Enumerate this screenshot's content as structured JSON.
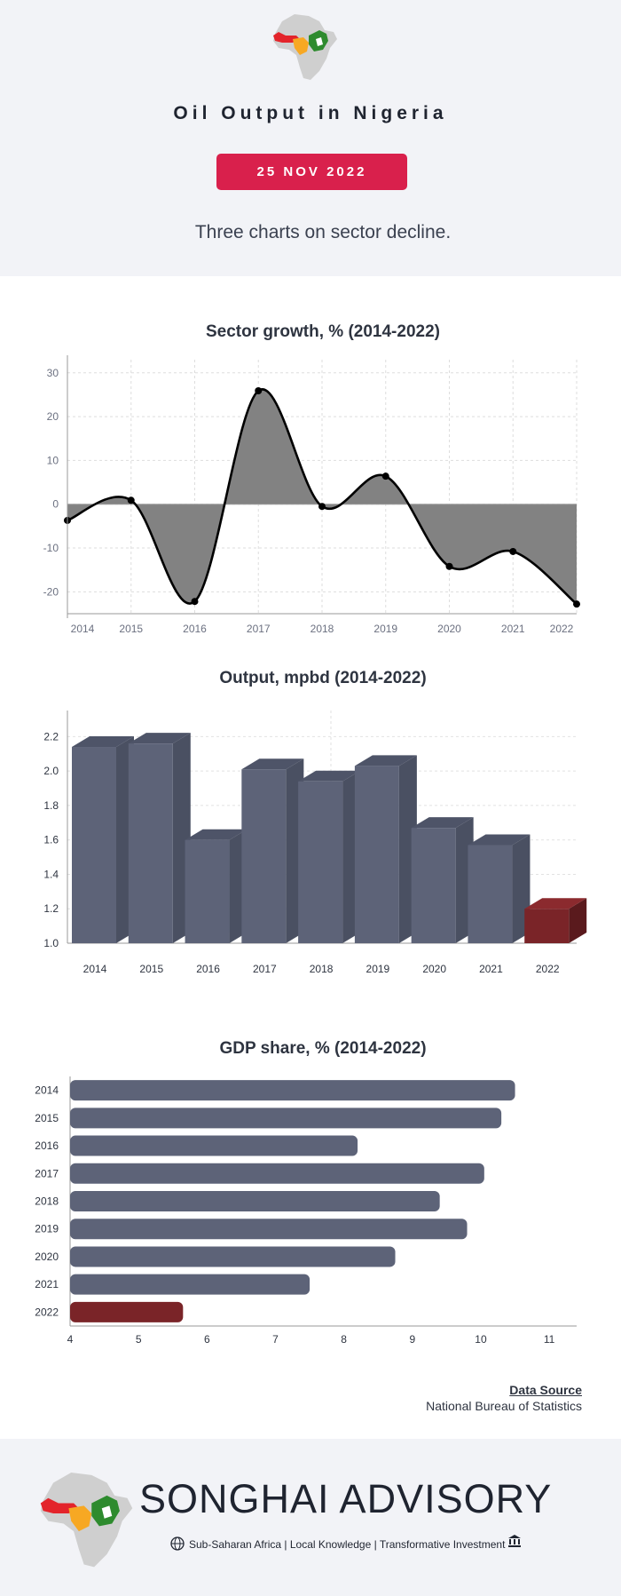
{
  "header": {
    "title": "Oil Output in Nigeria",
    "date_badge": "25 NOV 2022",
    "subtitle": "Three charts on sector decline."
  },
  "colors": {
    "accent": "#d9204c",
    "bar": "#5d6378",
    "bar_side": "#4a5062",
    "bar_top": "#4e5468",
    "highlight": "#7a2428",
    "area": "#808080",
    "header_bg": "#f2f3f7"
  },
  "chart_data": [
    {
      "type": "area",
      "title": "Sector growth, % (2014-2022)",
      "x": [
        "2014",
        "2015",
        "2016",
        "2017",
        "2018",
        "2019",
        "2020",
        "2021",
        "2022"
      ],
      "values": [
        -3.7,
        0.9,
        -22.2,
        25.9,
        -0.5,
        6.4,
        -14.2,
        -10.8,
        -22.8
      ],
      "ylim": [
        -25,
        33
      ],
      "yticks": [
        30,
        20,
        10,
        0,
        -10,
        -20
      ],
      "grid": true,
      "smooth": true
    },
    {
      "type": "bar",
      "title": "Output, mpbd (2014-2022)",
      "categories": [
        "2014",
        "2015",
        "2016",
        "2017",
        "2018",
        "2019",
        "2020",
        "2021",
        "2022"
      ],
      "values": [
        2.14,
        2.16,
        1.6,
        2.01,
        1.94,
        2.03,
        1.67,
        1.57,
        1.2
      ],
      "ylim": [
        1.0,
        2.3
      ],
      "yticks": [
        "1.0",
        "1.2",
        "1.4",
        "1.6",
        "1.8",
        "2.0",
        "2.2"
      ],
      "highlight_last": true,
      "style": "3d"
    },
    {
      "type": "bar",
      "orientation": "horizontal",
      "title": "GDP share, % (2014-2022)",
      "categories": [
        "2014",
        "2015",
        "2016",
        "2017",
        "2018",
        "2019",
        "2020",
        "2021",
        "2022"
      ],
      "values": [
        10.5,
        10.3,
        8.2,
        10.05,
        9.4,
        9.8,
        8.75,
        7.5,
        5.65
      ],
      "xlim": [
        4,
        11.4
      ],
      "xticks": [
        "4",
        "5",
        "6",
        "7",
        "8",
        "9",
        "10",
        "11"
      ],
      "highlight_last": true
    }
  ],
  "source": {
    "heading": "Data Source",
    "body": "National Bureau of Statistics"
  },
  "footer": {
    "brand": "SONGHAI ADVISORY",
    "tagline": "Sub-Saharan Africa | Local Knowledge | Transformative Investment",
    "logo_icon": "africa-map-icon",
    "globe_icon": "globe-icon",
    "bank_icon": "bank-icon"
  }
}
